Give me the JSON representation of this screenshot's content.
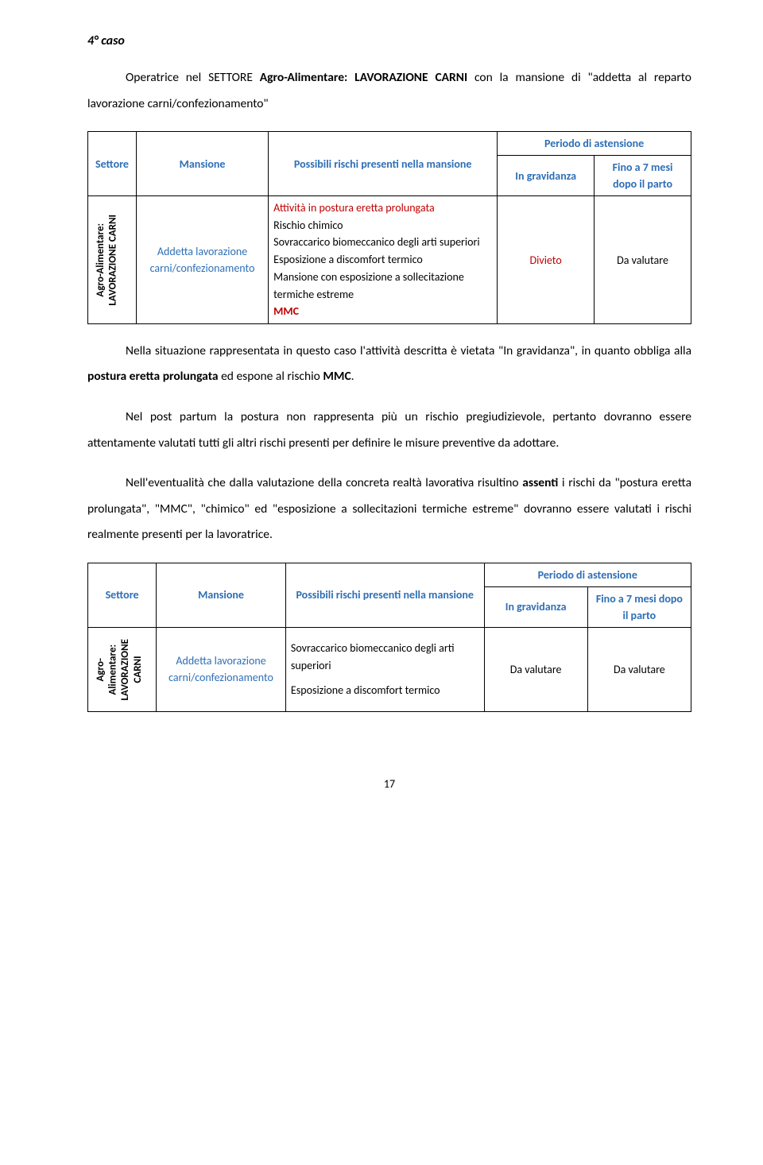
{
  "heading": "4° caso",
  "intro_html": "Operatrice nel SETTORE <b>Agro-Alimentare: LAVORAZIONE CARNI</b> con la mansione di \"addetta al reparto lavorazione carni/confezionamento\"",
  "table1": {
    "headers": {
      "settore": "Settore",
      "mansione": "Mansione",
      "rischi": "Possibili rischi presenti nella mansione",
      "periodo": "Periodo di astensione",
      "gravidanza": "In gravidanza",
      "fino7": "Fino a 7 mesi dopo il parto"
    },
    "sector_vert": "Agro-Alimentare:\nLAVORAZIONE CARNI",
    "mansione_val": "Addetta lavorazione carni/confezionamento",
    "risks": [
      {
        "text": "Attività in postura eretta prolungata",
        "cls": "red-normal"
      },
      {
        "text": "Rischio chimico",
        "cls": ""
      },
      {
        "text": "Sovraccarico biomeccanico degli arti superiori",
        "cls": ""
      },
      {
        "text": "Esposizione a discomfort  termico",
        "cls": ""
      },
      {
        "text": "Mansione con esposizione a sollecitazione termiche estreme",
        "cls": ""
      },
      {
        "text": "MMC",
        "cls": "red"
      }
    ],
    "gravidanza_val": "Divieto",
    "gravidanza_cls": "red",
    "fino7_val": "Da valutare"
  },
  "paragraphs": [
    "Nella situazione rappresentata in questo caso l'attività descritta è vietata \"In gravidanza\", in quanto obbliga alla <b>postura eretta prolungata</b> ed espone al rischio <b>MMC</b>.",
    "Nel post partum la postura non rappresenta più un rischio pregiudizievole, pertanto dovranno essere attentamente valutati tutti gli altri rischi presenti per definire le misure preventive da adottare.",
    "Nell'eventualità che dalla valutazione della concreta realtà lavorativa risultino <b>assenti</b> i rischi da \"postura eretta prolungata\", \"MMC\", \"chimico\" ed \"esposizione a sollecitazioni termiche estreme\" dovranno essere valutati i rischi realmente presenti per la lavoratrice."
  ],
  "table2": {
    "headers": {
      "settore": "Settore",
      "mansione": "Mansione",
      "rischi": "Possibili rischi presenti nella mansione",
      "periodo": "Periodo di astensione",
      "gravidanza": "In gravidanza",
      "fino7": "Fino a 7 mesi dopo il parto"
    },
    "sector_vert": "Agro-\nAlimentare:\nLAVORAZIONE\nCARNI",
    "mansione_val": "Addetta lavorazione carni/confezionamento",
    "risks": [
      {
        "text": "Sovraccarico biomeccanico degli arti superiori",
        "cls": ""
      },
      {
        "text": "",
        "cls": ""
      },
      {
        "text": "Esposizione a discomfort  termico",
        "cls": ""
      }
    ],
    "gravidanza_val": "Da valutare",
    "fino7_val": "Da valutare"
  },
  "page_number": "17"
}
